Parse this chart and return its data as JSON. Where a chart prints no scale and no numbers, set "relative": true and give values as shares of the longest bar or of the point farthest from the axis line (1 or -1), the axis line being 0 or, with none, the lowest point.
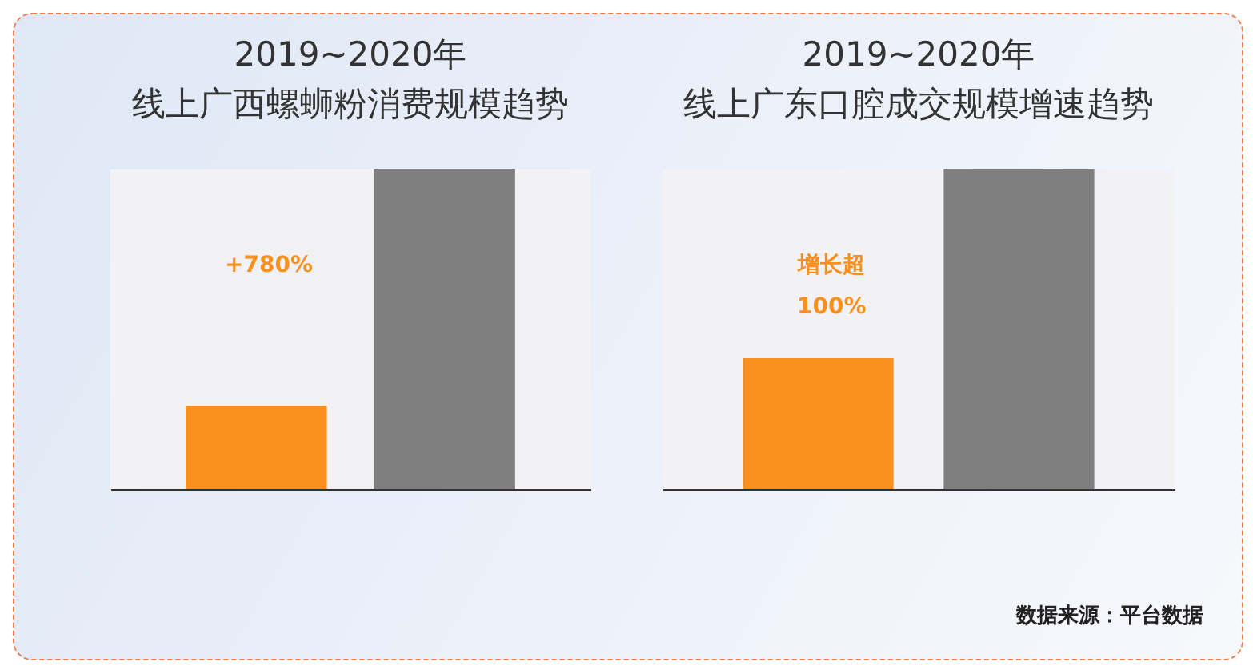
{
  "chart_data": [
    {
      "type": "bar",
      "title": "2019~2020年",
      "subtitle": "线上广西螺蛳粉消费规模趋势",
      "categories": [
        null,
        null
      ],
      "relative": true,
      "colors": [
        "#f7901e",
        "#7f7f7f"
      ],
      "values": [
        0.26,
        1
      ],
      "annotations": [
        "+780%"
      ]
    },
    {
      "type": "bar",
      "title": "2019~2020年",
      "subtitle": "线上广东口腔成交规模增速趋势",
      "categories": [
        null,
        null
      ],
      "relative": true,
      "colors": [
        "#f7901e",
        "#7f7f7f"
      ],
      "values": [
        0.41,
        1
      ],
      "annotations": [
        "增长超\n100%",
        "数据来源：平台数据"
      ]
    }
  ]
}
